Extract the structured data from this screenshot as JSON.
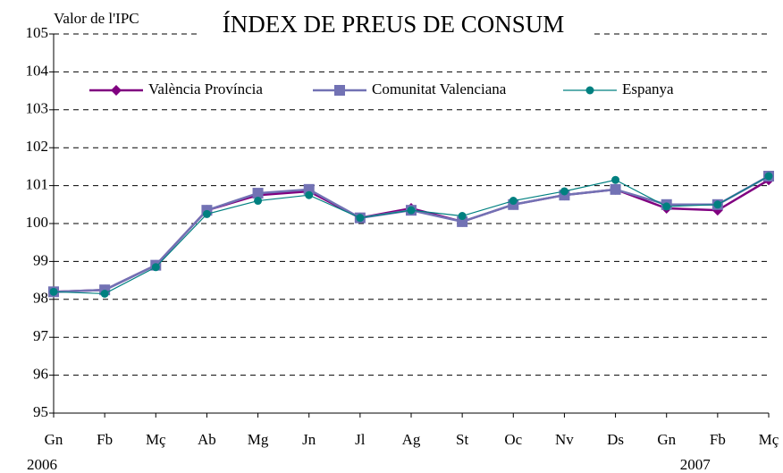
{
  "chart_data": {
    "type": "line",
    "title": "ÍNDEX DE PREUS DE CONSUM",
    "y_label": "Valor de l'IPC",
    "categories": [
      "Gn",
      "Fb",
      "Mç",
      "Ab",
      "Mg",
      "Jn",
      "Jl",
      "Ag",
      "St",
      "Oc",
      "Nv",
      "Ds",
      "Gn",
      "Fb",
      "Mç"
    ],
    "year_labels": [
      "2006",
      null,
      null,
      null,
      null,
      null,
      null,
      null,
      null,
      null,
      null,
      null,
      "2007",
      null,
      null
    ],
    "series": [
      {
        "name": "València Província",
        "color": "#800080",
        "marker": "diamond",
        "values": [
          98.2,
          98.25,
          98.9,
          100.35,
          100.75,
          100.85,
          100.15,
          100.4,
          100.05,
          100.5,
          100.75,
          100.9,
          100.4,
          100.35,
          101.15
        ]
      },
      {
        "name": "Comunitat Valenciana",
        "color": "#7272b4",
        "marker": "square",
        "values": [
          98.2,
          98.25,
          98.9,
          100.35,
          100.8,
          100.9,
          100.15,
          100.35,
          100.05,
          100.5,
          100.75,
          100.9,
          100.5,
          100.5,
          101.25
        ]
      },
      {
        "name": "Espanya",
        "color": "#008080",
        "marker": "circle",
        "values": [
          98.2,
          98.15,
          98.85,
          100.25,
          100.6,
          100.75,
          100.15,
          100.35,
          100.2,
          100.6,
          100.85,
          101.15,
          100.45,
          100.5,
          101.25
        ]
      }
    ],
    "ylim": [
      95,
      105
    ],
    "yticks": [
      95,
      96,
      97,
      98,
      99,
      100,
      101,
      102,
      103,
      104,
      105
    ],
    "grid": true
  }
}
